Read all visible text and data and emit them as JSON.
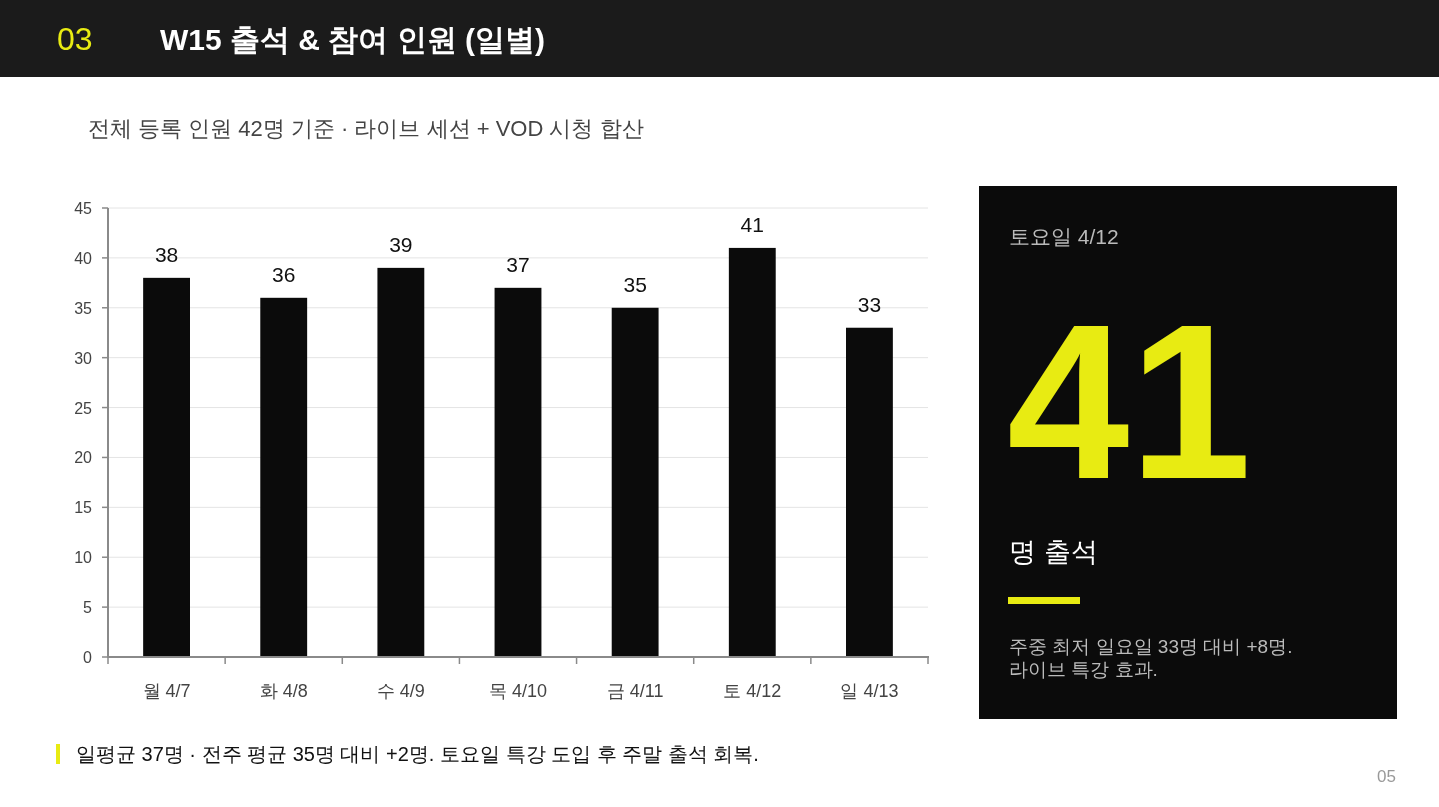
{
  "chart_data": [
    {
      "type": "bar",
      "title": "W15 출석 & 참여 인원 (일별)",
      "subtitle": "전체 등록 인원 42명 기준 · 라이브 세션 + VOD 시청 합산",
      "categories": [
        "월 4/7",
        "화 4/8",
        "수 4/9",
        "목 4/10",
        "금 4/11",
        "토 4/12",
        "일 4/13"
      ],
      "values": [
        38,
        36,
        39,
        37,
        35,
        41,
        33
      ],
      "color": "#0b0b0b",
      "ylim": [
        0,
        45
      ],
      "yticks": [
        0,
        5,
        10,
        15,
        20,
        25,
        30,
        35,
        40,
        45
      ],
      "grid": "y",
      "data_labels": true,
      "annotations": [
        "03",
        "일평균 37명 · 전주 평균 35명 대비 +2명. 토요일 특강 도입 후 주말 출석 회복.",
        "05"
      ]
    },
    {
      "type": "other",
      "title": "토요일 4/12",
      "annotations": [
        "41",
        "명 출석",
        "주중 최저 일요일 33명 대비 +8명.\n라이브 특강 효과."
      ]
    }
  ]
}
